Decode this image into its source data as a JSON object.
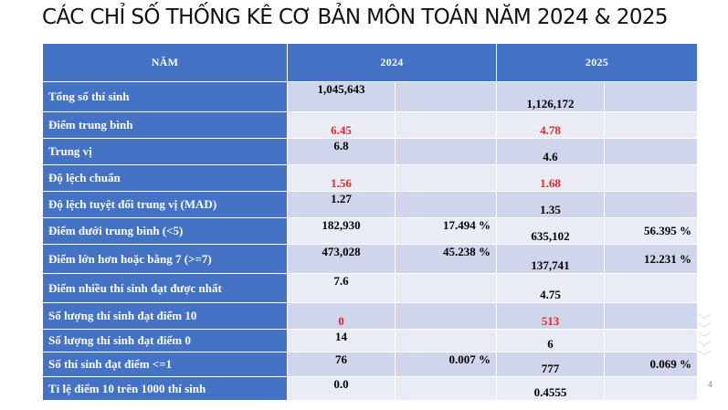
{
  "title": "CÁC CHỈ SỐ THỐNG KÊ CƠ BẢN MÔN TOÁN NĂM 2024 & 2025",
  "headers": {
    "col0": "NĂM",
    "col2024": "2024",
    "col2025": "2025"
  },
  "rows": [
    {
      "label": "Tổng số thí sinh",
      "v2024": "1,045,643",
      "p2024": "",
      "v2025": "1,126,172",
      "p2025": "",
      "highlight": false
    },
    {
      "label": "Điểm trung bình",
      "v2024": "6.45",
      "p2024": "",
      "v2025": "4.78",
      "p2025": "",
      "highlight": true
    },
    {
      "label": "Trung vị",
      "v2024": "6.8",
      "p2024": "",
      "v2025": "4.6",
      "p2025": "",
      "highlight": false
    },
    {
      "label": "Độ lệch chuẩn",
      "v2024": "1.56",
      "p2024": "",
      "v2025": "1.68",
      "p2025": "",
      "highlight": true
    },
    {
      "label": "Độ lệch tuyệt đối trung vị (MAD)",
      "v2024": "1.27",
      "p2024": "",
      "v2025": "1.35",
      "p2025": "",
      "highlight": false
    },
    {
      "label": "Điểm dưới trung bình (<5)",
      "v2024": "182,930",
      "p2024": "17.494 %",
      "v2025": "635,102",
      "p2025": "56.395 %",
      "highlight": false
    },
    {
      "label": "Điểm lớn hơn hoặc bằng 7 (>=7)",
      "v2024": "473,028",
      "p2024": "45.238 %",
      "v2025": "137,741",
      "p2025": "12.231 %",
      "highlight": false
    },
    {
      "label": "Điểm nhiều thí sinh đạt được nhất",
      "v2024": "7.6",
      "p2024": "",
      "v2025": "4.75",
      "p2025": "",
      "highlight": false
    },
    {
      "label": "Số lượng thí sinh đạt điểm 10",
      "v2024": "0",
      "p2024": "",
      "v2025": "513",
      "p2025": "",
      "highlight": true
    },
    {
      "label": "Số lượng thí sinh đạt điểm 0",
      "v2024": "14",
      "p2024": "",
      "v2025": "6",
      "p2025": "",
      "highlight": false
    },
    {
      "label": "Số thí sinh đạt điểm <=1",
      "v2024": "76",
      "p2024": "0.007 %",
      "v2025": "777",
      "p2025": "0.069 %",
      "highlight": false
    },
    {
      "label": "Tỉ lệ điểm 10 trên 1000 thí sinh",
      "v2024": "0.0",
      "p2024": "",
      "v2025": "0.4555",
      "p2025": "",
      "highlight": false
    }
  ],
  "page_number": "4",
  "colors": {
    "header_blue": "#4472c4",
    "band_dark": "#cfd5ea",
    "band_light": "#e9ebf5",
    "highlight_red": "#e1292b"
  }
}
